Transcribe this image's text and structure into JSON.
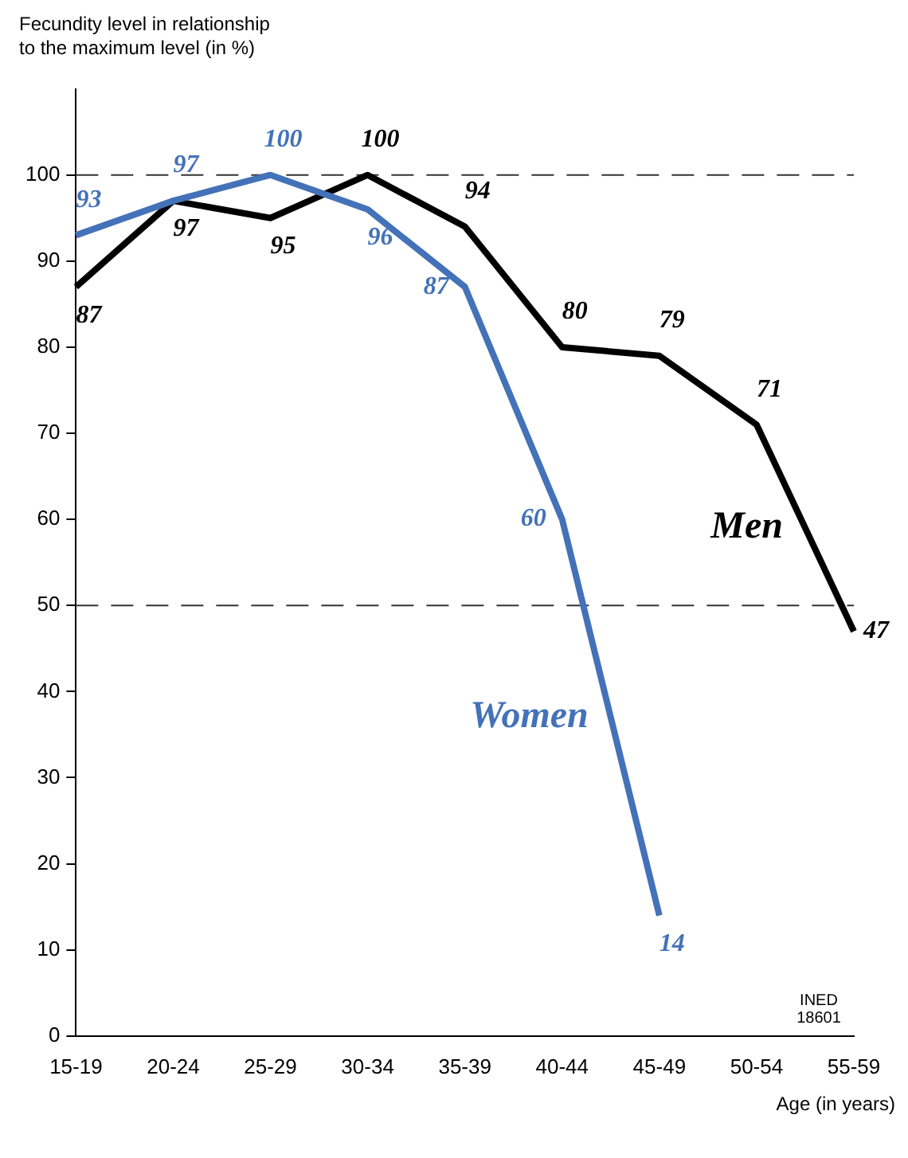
{
  "chart_data": {
    "type": "line",
    "ylabel": "Fecundity level in relationship\nto the maximum level (in %)",
    "xlabel": "Age (in years)",
    "categories": [
      "15-19",
      "20-24",
      "25-29",
      "30-34",
      "35-39",
      "40-44",
      "45-49",
      "50-54",
      "55-59"
    ],
    "series": [
      {
        "name": "Women",
        "color": "#4472b8",
        "values": [
          93,
          97,
          100,
          96,
          87,
          60,
          14,
          null,
          null
        ]
      },
      {
        "name": "Men",
        "color": "#000000",
        "values": [
          87,
          97,
          95,
          100,
          94,
          80,
          79,
          71,
          47
        ]
      }
    ],
    "ylim": [
      0,
      110
    ],
    "yticks": [
      0,
      10,
      20,
      30,
      40,
      50,
      60,
      70,
      80,
      90,
      100
    ],
    "ref_lines": [
      {
        "axis": "y",
        "value": 100,
        "color": "#333333",
        "line_style": "dashed"
      },
      {
        "axis": "y",
        "value": 50,
        "color": "#333333",
        "line_style": "dashed"
      }
    ],
    "annotations": [
      "INED\n18601"
    ],
    "data_labels": true,
    "legend": false,
    "grid": false,
    "marker": "none",
    "line_style": "solid"
  }
}
